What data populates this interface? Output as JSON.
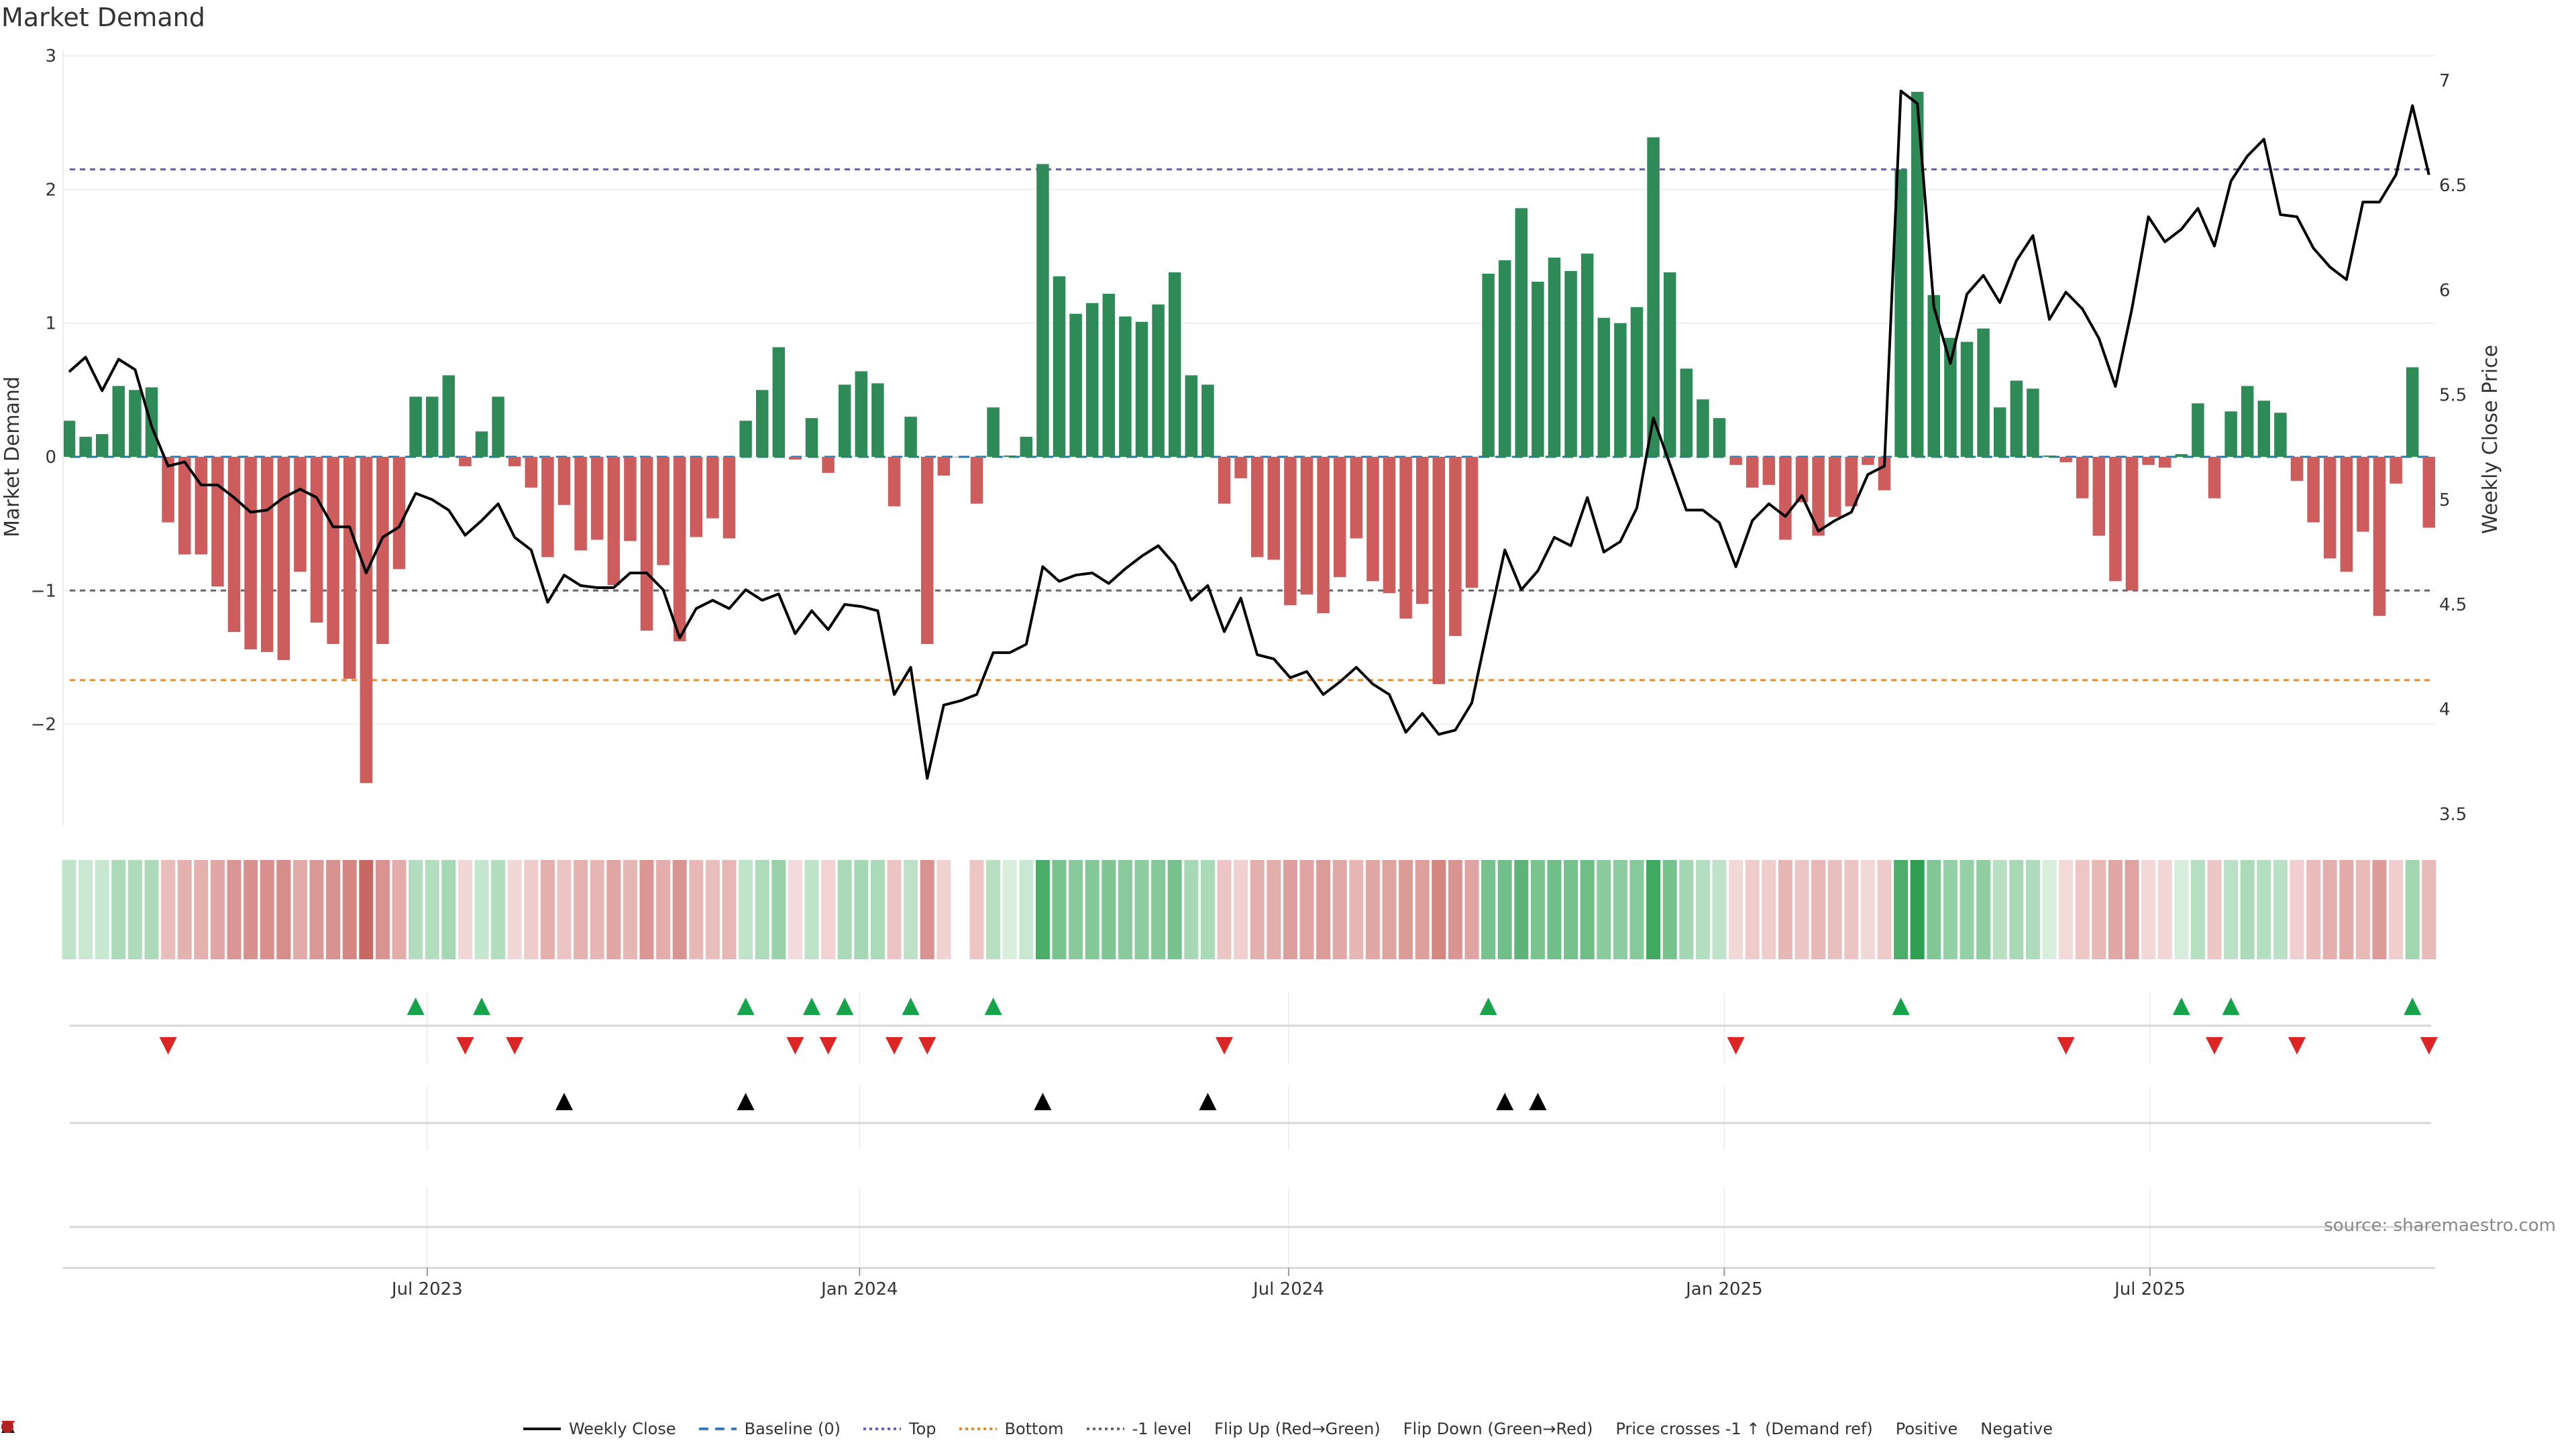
{
  "chart_data": {
    "type": "bar",
    "title": "Market Demand",
    "ylabel": "Market Demand",
    "y2label": "Weekly Close Price",
    "ylim": [
      -2.75,
      3.0
    ],
    "y2lim": [
      3.5,
      7.1
    ],
    "yticks": [
      "3",
      "2",
      "1",
      "0",
      "−1",
      "−2"
    ],
    "ytick_values": [
      3,
      2,
      1,
      0,
      -1,
      -2
    ],
    "y2ticks": [
      "7",
      "6.5",
      "6",
      "5.5",
      "5",
      "4.5",
      "4",
      "3.5"
    ],
    "y2tick_values": [
      7,
      6.5,
      6,
      5.5,
      5,
      4.5,
      4,
      3.5
    ],
    "xticks": [
      {
        "label": "Jul 2023",
        "week": 21.7
      },
      {
        "label": "Jan 2024",
        "week": 47.9
      },
      {
        "label": "Jul 2024",
        "week": 73.9
      },
      {
        "label": "Jan 2025",
        "week": 100.3
      },
      {
        "label": "Jul 2025",
        "week": 126.1
      }
    ],
    "reference_lines": {
      "top": 2.15,
      "bottom": -1.67,
      "minus_one": -1,
      "baseline": 0
    },
    "demand": [
      0.27,
      0.15,
      0.17,
      0.53,
      0.5,
      0.52,
      -0.49,
      -0.73,
      -0.73,
      -0.97,
      -1.31,
      -1.44,
      -1.46,
      -1.52,
      -0.86,
      -1.24,
      -1.4,
      -1.66,
      -2.44,
      -1.4,
      -0.84,
      0.45,
      0.45,
      0.61,
      -0.07,
      0.19,
      0.45,
      -0.07,
      -0.23,
      -0.75,
      -0.36,
      -0.7,
      -0.62,
      -0.96,
      -0.63,
      -1.3,
      -0.81,
      -1.38,
      -0.6,
      -0.46,
      -0.61,
      0.27,
      0.5,
      0.82,
      -0.02,
      0.29,
      -0.12,
      0.54,
      0.64,
      0.55,
      -0.37,
      0.3,
      -1.4,
      -0.14,
      0,
      -0.35,
      0.37,
      0.01,
      0.15,
      2.19,
      1.35,
      1.07,
      1.15,
      1.22,
      1.05,
      1.01,
      1.14,
      1.38,
      0.61,
      0.54,
      -0.35,
      -0.16,
      -0.75,
      -0.77,
      -1.11,
      -1.03,
      -1.17,
      -0.9,
      -0.61,
      -0.93,
      -1.02,
      -1.21,
      -1.1,
      -1.7,
      -1.34,
      -0.98,
      1.37,
      1.47,
      1.86,
      1.31,
      1.49,
      1.39,
      1.52,
      1.04,
      1.0,
      1.12,
      2.39,
      1.38,
      0.66,
      0.43,
      0.29,
      -0.06,
      -0.23,
      -0.21,
      -0.62,
      -0.34,
      -0.59,
      -0.45,
      -0.37,
      -0.06,
      -0.25,
      2.15,
      2.73,
      1.21,
      0.89,
      0.86,
      0.96,
      0.37,
      0.57,
      0.51,
      0.01,
      -0.04,
      -0.31,
      -0.59,
      -0.93,
      -1.0,
      -0.06,
      -0.08,
      0.02,
      0.4,
      -0.31,
      0.34,
      0.53,
      0.42,
      0.33,
      -0.18,
      -0.49,
      -0.76,
      -0.86,
      -0.56,
      -1.19,
      -0.2,
      0.67,
      -0.53
    ],
    "weekly_close": [
      5.61,
      5.68,
      5.52,
      5.67,
      5.62,
      5.35,
      5.16,
      5.18,
      5.07,
      5.07,
      5.01,
      4.94,
      4.95,
      5.01,
      5.05,
      5.01,
      4.87,
      4.87,
      4.65,
      4.82,
      4.87,
      5.03,
      5.0,
      4.95,
      4.83,
      4.9,
      4.98,
      4.82,
      4.76,
      4.51,
      4.64,
      4.59,
      4.58,
      4.58,
      4.65,
      4.65,
      4.57,
      4.34,
      4.48,
      4.52,
      4.48,
      4.57,
      4.52,
      4.55,
      4.36,
      4.47,
      4.38,
      4.5,
      4.49,
      4.47,
      4.07,
      4.2,
      3.67,
      4.02,
      4.04,
      4.07,
      4.27,
      4.27,
      4.31,
      4.68,
      4.61,
      4.64,
      4.65,
      4.6,
      4.67,
      4.73,
      4.78,
      4.69,
      4.52,
      4.59,
      4.37,
      4.53,
      4.26,
      4.24,
      4.15,
      4.18,
      4.07,
      4.13,
      4.2,
      4.12,
      4.07,
      3.89,
      3.98,
      3.88,
      3.9,
      4.03,
      4.4,
      4.76,
      4.57,
      4.66,
      4.82,
      4.78,
      5.01,
      4.75,
      4.8,
      4.96,
      5.39,
      5.17,
      4.95,
      4.95,
      4.89,
      4.68,
      4.9,
      4.98,
      4.92,
      5.02,
      4.85,
      4.9,
      4.94,
      5.12,
      5.16,
      6.95,
      6.89,
      5.92,
      5.65,
      5.98,
      6.07,
      5.94,
      6.14,
      6.26,
      5.86,
      5.99,
      5.91,
      5.77,
      5.54,
      5.91,
      6.35,
      6.23,
      6.29,
      6.39,
      6.21,
      6.52,
      6.64,
      6.72,
      6.36,
      6.35,
      6.2,
      6.11,
      6.05,
      6.42,
      6.42,
      6.55,
      6.88,
      6.55
    ],
    "flip_up_weeks": [
      21,
      25,
      41,
      45,
      47,
      51,
      56,
      86,
      111,
      128,
      131,
      142
    ],
    "flip_down_weeks": [
      6,
      24,
      27,
      44,
      46,
      50,
      52,
      70,
      101,
      121,
      130,
      135,
      143
    ],
    "price_cross_weeks": [
      30,
      41,
      59,
      69,
      87,
      89
    ],
    "legend": [
      "Weekly Close",
      "Baseline (0)",
      "Top",
      "Bottom",
      "-1 level",
      "Flip Up (Red→Green)",
      "Flip Down (Green→Red)",
      "Price crosses -1 ↑ (Demand ref)",
      "Positive",
      "Negative"
    ],
    "legend_placement": "bottom-center"
  },
  "colors": {
    "positive": "#2e8b57",
    "negative": "#cd5c5c",
    "price": "#000000",
    "baseline": "#1f77b4",
    "top": "#6a5acd",
    "bottom": "#e8892a",
    "minus_one": "#666666",
    "flip_up": "#16a34a",
    "flip_down": "#dc2626",
    "cross": "#000000",
    "legend_positive": "#1f8a2e",
    "legend_negative": "#b22222"
  },
  "source": "source: sharemaestro.com"
}
